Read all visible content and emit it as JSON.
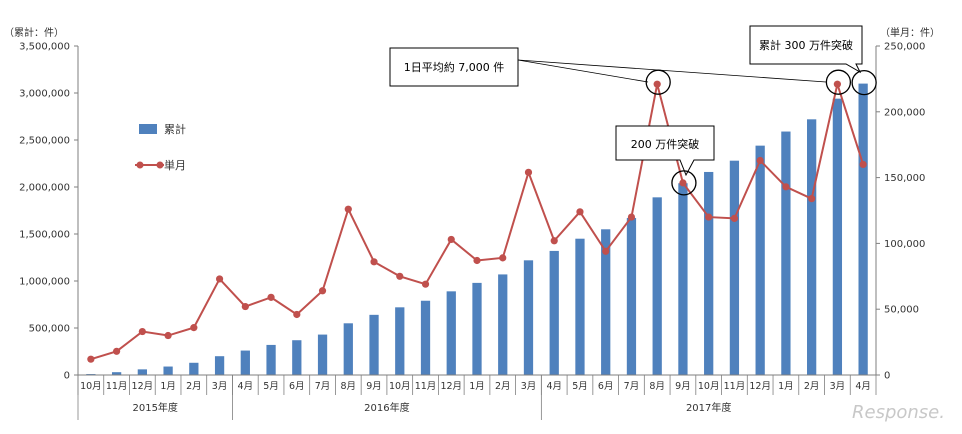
{
  "chart_data": {
    "type": "bar+line",
    "left_axis_unit": "（累計：件）",
    "right_axis_unit": "（単月：件）",
    "left_axis": {
      "min": 0,
      "max": 3500000,
      "step": 500000,
      "ticks": [
        "0",
        "500,000",
        "1,000,000",
        "1,500,000",
        "2,000,000",
        "2,500,000",
        "3,000,000",
        "3,500,000"
      ]
    },
    "right_axis": {
      "min": 0,
      "max": 250000,
      "step": 50000,
      "ticks": [
        "0",
        "50,000",
        "100,000",
        "150,000",
        "200,000",
        "250,000"
      ]
    },
    "categories": [
      "10月",
      "11月",
      "12月",
      "1月",
      "2月",
      "3月",
      "4月",
      "5月",
      "6月",
      "7月",
      "8月",
      "9月",
      "10月",
      "11月",
      "12月",
      "1月",
      "2月",
      "3月",
      "4月",
      "5月",
      "6月",
      "7月",
      "8月",
      "9月",
      "10月",
      "11月",
      "12月",
      "1月",
      "2月",
      "3月",
      "4月"
    ],
    "fiscal_years": [
      {
        "label": "2015年度",
        "count": 6
      },
      {
        "label": "2016年度",
        "count": 12
      },
      {
        "label": "2017年度",
        "count": 13
      }
    ],
    "series": [
      {
        "name": "累計",
        "type": "bar",
        "axis": "left",
        "color": "#4F81BD",
        "values": [
          10000,
          30000,
          60000,
          90000,
          130000,
          200000,
          260000,
          320000,
          370000,
          430000,
          550000,
          640000,
          720000,
          790000,
          890000,
          980000,
          1070000,
          1220000,
          1320000,
          1450000,
          1550000,
          1670000,
          1890000,
          2040000,
          2160000,
          2280000,
          2440000,
          2590000,
          2720000,
          2940000,
          3100000
        ]
      },
      {
        "name": "単月",
        "type": "line",
        "axis": "right",
        "color": "#C0504D",
        "values": [
          12000,
          18000,
          33000,
          30000,
          36000,
          73000,
          52000,
          59000,
          46000,
          64000,
          126000,
          86000,
          75000,
          69000,
          103000,
          87000,
          89000,
          154000,
          102000,
          124000,
          94000,
          120000,
          221000,
          146000,
          120000,
          119000,
          163000,
          143000,
          134000,
          221000,
          160000
        ]
      }
    ],
    "legend_position": "left-inside",
    "grid": false,
    "annotations": [
      "1日平均約 7,000 件",
      "200 万件突破",
      "累計 300 万件突破"
    ],
    "highlighted_points": [
      22,
      23,
      29,
      30
    ]
  },
  "colors": {
    "bar": "#4F81BD",
    "line": "#C0504D",
    "axis": "#7f7f7f"
  },
  "watermark": "Response."
}
